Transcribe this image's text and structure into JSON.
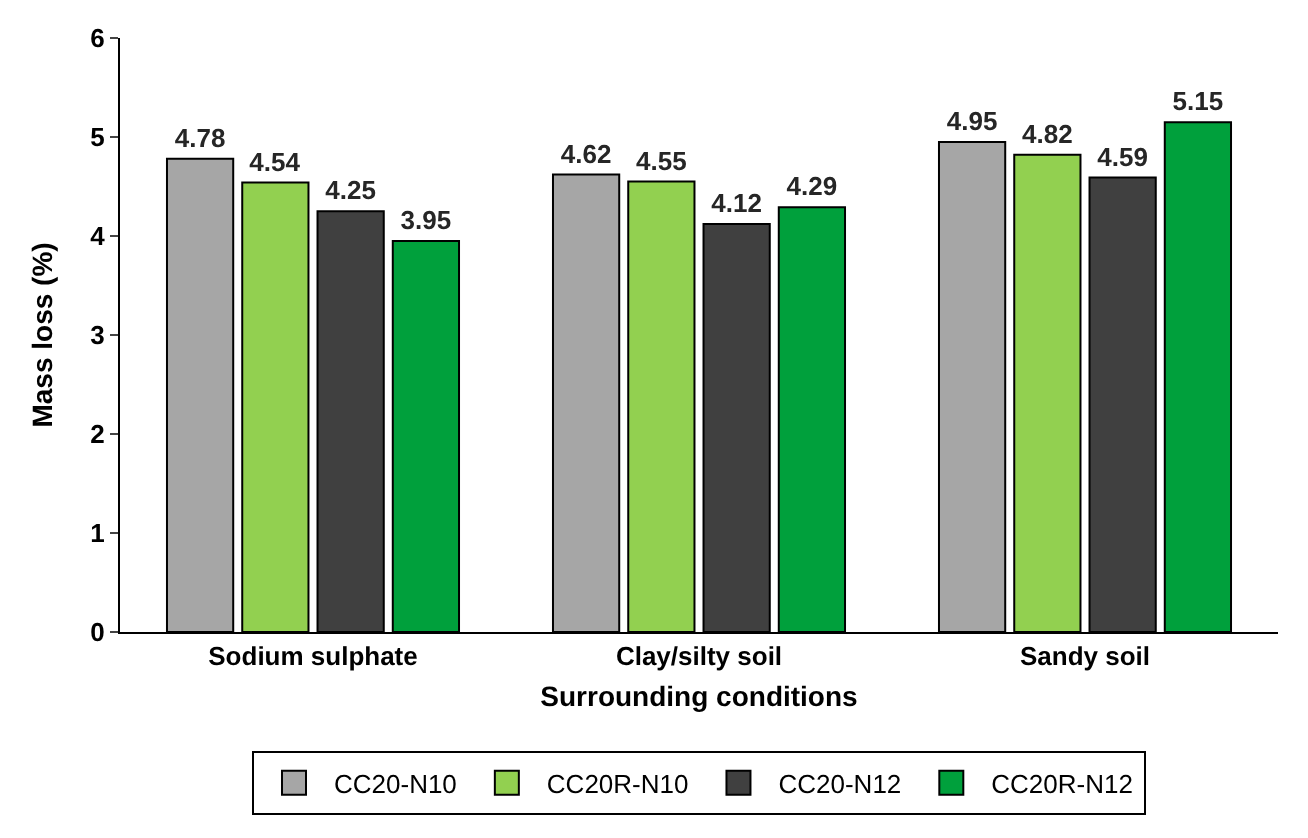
{
  "chart_data": {
    "type": "bar",
    "xlabel": "Surrounding conditions",
    "ylabel": "Mass loss (%)",
    "categories": [
      "Sodium sulphate",
      "Clay/silty soil",
      "Sandy soil"
    ],
    "series": [
      {
        "name": "CC20-N10",
        "color": "#a6a6a6",
        "values": [
          4.78,
          4.62,
          4.95
        ]
      },
      {
        "name": "CC20R-N10",
        "color": "#92d050",
        "values": [
          4.54,
          4.55,
          4.82
        ]
      },
      {
        "name": "CC20-N12",
        "color": "#404040",
        "values": [
          4.25,
          4.12,
          4.59
        ]
      },
      {
        "name": "CC20R-N12",
        "color": "#00a03c",
        "values": [
          3.95,
          4.29,
          5.15
        ]
      }
    ],
    "ylim": [
      0,
      6
    ],
    "yticks": [
      0,
      1,
      2,
      3,
      4,
      5,
      6
    ],
    "legend": "bottom",
    "data_labels": true
  }
}
